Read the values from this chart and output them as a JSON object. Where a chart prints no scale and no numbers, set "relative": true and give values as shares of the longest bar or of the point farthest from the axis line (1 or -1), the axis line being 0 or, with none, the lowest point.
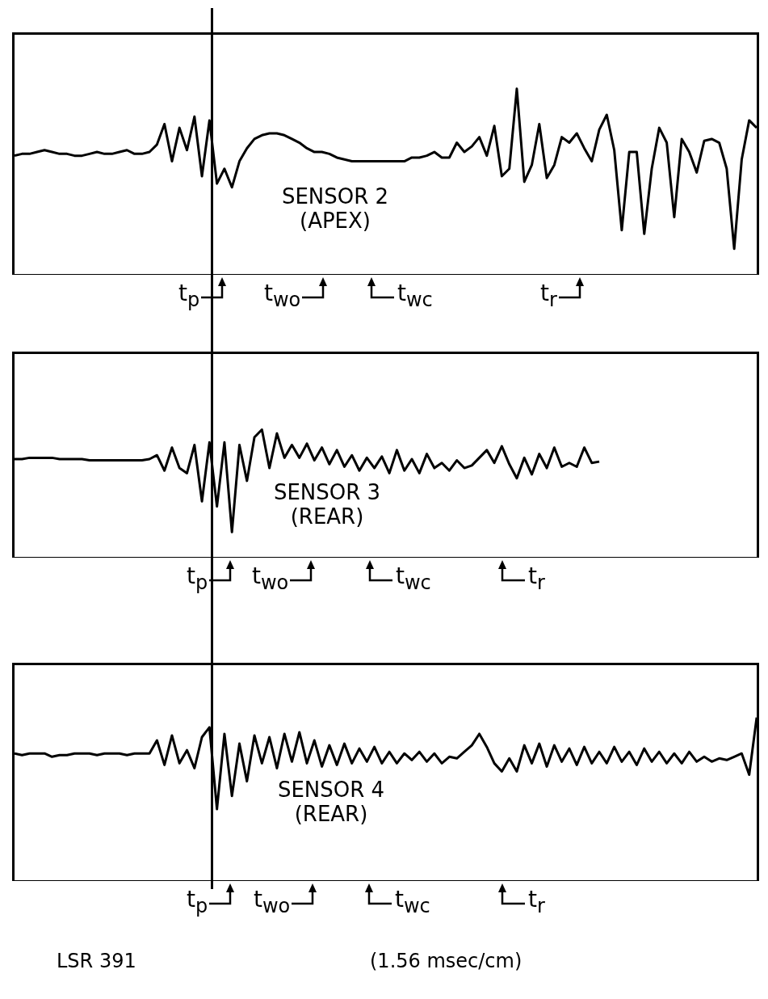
{
  "chart_data": [
    {
      "type": "line",
      "relative": true,
      "marker": "none",
      "color": "#000000",
      "categories": [
        null,
        null,
        null,
        null,
        null,
        null,
        null,
        null,
        null,
        null,
        null,
        null,
        null,
        null,
        null,
        null,
        null,
        null,
        null,
        null,
        null,
        null,
        null,
        null,
        null,
        null,
        null,
        null,
        null,
        null,
        null,
        null,
        null,
        null,
        null,
        null,
        null,
        null,
        null,
        null,
        null,
        null,
        null,
        null,
        null,
        null,
        null,
        null,
        null,
        null,
        null,
        null,
        null,
        null,
        null,
        null,
        null,
        null,
        null,
        null,
        null,
        null,
        null,
        null,
        null,
        null,
        null,
        null,
        null,
        null,
        null,
        null,
        null,
        null,
        null,
        null,
        null,
        null,
        null,
        null,
        null,
        null,
        null,
        null,
        null,
        null,
        null,
        null,
        null,
        null,
        null,
        null,
        null,
        null,
        null,
        null,
        null,
        null,
        null,
        null
      ],
      "values": [
        0.64,
        0.65,
        0.65,
        0.66,
        0.67,
        0.66,
        0.65,
        0.65,
        0.64,
        0.64,
        0.65,
        0.66,
        0.65,
        0.65,
        0.66,
        0.67,
        0.65,
        0.65,
        0.66,
        0.7,
        0.81,
        0.61,
        0.79,
        0.67,
        0.85,
        0.53,
        0.83,
        0.49,
        0.57,
        0.47,
        0.61,
        0.68,
        0.73,
        0.75,
        0.76,
        0.76,
        0.75,
        0.73,
        0.71,
        0.68,
        0.66,
        0.66,
        0.65,
        0.63,
        0.62,
        0.61,
        0.61,
        0.61,
        0.61,
        0.61,
        0.61,
        0.61,
        0.61,
        0.63,
        0.63,
        0.64,
        0.66,
        0.63,
        0.63,
        0.71,
        0.66,
        0.69,
        0.74,
        0.64,
        0.8,
        0.53,
        0.57,
        1,
        0.5,
        0.59,
        0.81,
        0.52,
        0.59,
        0.74,
        0.71,
        0.76,
        0.68,
        0.61,
        0.78,
        0.86,
        0.67,
        0.24,
        0.66,
        0.66,
        0.22,
        0.57,
        0.79,
        0.71,
        0.31,
        0.73,
        0.66,
        0.55,
        0.72,
        0.73,
        0.71,
        0.57,
        0.14,
        0.62,
        0.83,
        0.79
      ],
      "annotations": [
        "SENSOR 2 (APEX)",
        "t$_{p}$",
        "t$_{wo}$",
        "t$_{wc}$",
        "t$_{r}$"
      ]
    },
    {
      "type": "line",
      "relative": true,
      "marker": "none",
      "color": "#000000",
      "categories": [
        null,
        null,
        null,
        null,
        null,
        null,
        null,
        null,
        null,
        null,
        null,
        null,
        null,
        null,
        null,
        null,
        null,
        null,
        null,
        null,
        null,
        null,
        null,
        null,
        null,
        null,
        null,
        null,
        null,
        null,
        null,
        null,
        null,
        null,
        null,
        null,
        null,
        null,
        null,
        null,
        null,
        null,
        null,
        null,
        null,
        null,
        null,
        null,
        null,
        null,
        null,
        null,
        null,
        null,
        null,
        null,
        null,
        null,
        null,
        null,
        null,
        null,
        null,
        null,
        null,
        null,
        null,
        null,
        null,
        null,
        null,
        null,
        null,
        null,
        null,
        null,
        null,
        null,
        null,
        null,
        null,
        null,
        null,
        null,
        null,
        null,
        null,
        null,
        null,
        null,
        null,
        null,
        null,
        null,
        null,
        null,
        null,
        null,
        null,
        null
      ],
      "values": [
        0.77,
        0.77,
        0.78,
        0.78,
        0.78,
        0.78,
        0.77,
        0.77,
        0.77,
        0.77,
        0.76,
        0.76,
        0.76,
        0.76,
        0.76,
        0.76,
        0.76,
        0.76,
        0.77,
        0.8,
        0.68,
        0.86,
        0.7,
        0.66,
        0.88,
        0.44,
        0.9,
        0.4,
        0.9,
        0.2,
        0.88,
        0.6,
        0.94,
        1,
        0.7,
        0.97,
        0.78,
        0.88,
        0.78,
        0.89,
        0.76,
        0.86,
        0.73,
        0.84,
        0.71,
        0.8,
        0.68,
        0.78,
        0.7,
        0.79,
        0.66,
        0.84,
        0.68,
        0.77,
        0.66,
        0.81,
        0.7,
        0.74,
        0.68,
        0.76,
        0.7,
        0.72,
        0.78,
        0.84,
        0.74,
        0.87,
        0.73,
        0.62,
        0.78,
        0.65,
        0.81,
        0.7,
        0.86,
        0.71,
        0.74,
        0.71,
        0.86,
        0.74,
        0.75,
        null,
        null,
        null,
        null,
        null,
        null,
        null,
        null,
        null,
        null,
        null,
        null,
        null,
        null,
        null,
        null,
        null,
        null,
        null,
        null,
        null
      ],
      "annotations": [
        "SENSOR 3 (REAR)",
        "t$_{p}$",
        "t$_{wo}$",
        "t$_{wc}$",
        "t$_{r}$"
      ]
    },
    {
      "type": "line",
      "relative": true,
      "marker": "none",
      "color": "#000000",
      "categories": [
        null,
        null,
        null,
        null,
        null,
        null,
        null,
        null,
        null,
        null,
        null,
        null,
        null,
        null,
        null,
        null,
        null,
        null,
        null,
        null,
        null,
        null,
        null,
        null,
        null,
        null,
        null,
        null,
        null,
        null,
        null,
        null,
        null,
        null,
        null,
        null,
        null,
        null,
        null,
        null,
        null,
        null,
        null,
        null,
        null,
        null,
        null,
        null,
        null,
        null,
        null,
        null,
        null,
        null,
        null,
        null,
        null,
        null,
        null,
        null,
        null,
        null,
        null,
        null,
        null,
        null,
        null,
        null,
        null,
        null,
        null,
        null,
        null,
        null,
        null,
        null,
        null,
        null,
        null,
        null,
        null,
        null,
        null,
        null,
        null,
        null,
        null,
        null,
        null,
        null,
        null,
        null,
        null,
        null,
        null,
        null,
        null,
        null,
        null,
        null
      ],
      "values": [
        0.78,
        0.77,
        0.78,
        0.78,
        0.78,
        0.76,
        0.77,
        0.77,
        0.78,
        0.78,
        0.78,
        0.77,
        0.78,
        0.78,
        0.78,
        0.77,
        0.78,
        0.78,
        0.78,
        0.86,
        0.71,
        0.89,
        0.72,
        0.8,
        0.69,
        0.88,
        0.94,
        0.44,
        0.9,
        0.52,
        0.84,
        0.61,
        0.89,
        0.72,
        0.88,
        0.69,
        0.9,
        0.73,
        0.91,
        0.72,
        0.86,
        0.7,
        0.83,
        0.71,
        0.84,
        0.72,
        0.81,
        0.73,
        0.82,
        0.72,
        0.79,
        0.72,
        0.78,
        0.74,
        0.79,
        0.73,
        0.78,
        0.72,
        0.76,
        0.75,
        0.79,
        0.83,
        0.9,
        0.82,
        0.72,
        0.67,
        0.75,
        0.67,
        0.83,
        0.72,
        0.84,
        0.7,
        0.83,
        0.73,
        0.81,
        0.71,
        0.82,
        0.72,
        0.79,
        0.72,
        0.82,
        0.73,
        0.79,
        0.71,
        0.81,
        0.73,
        0.79,
        0.72,
        0.78,
        0.72,
        0.79,
        0.73,
        0.76,
        0.73,
        0.75,
        0.74,
        0.76,
        0.78,
        0.65,
        1
      ],
      "annotations": [
        "SENSOR 4 (REAR)",
        "t$_{p}$",
        "t$_{wo}$",
        "t$_{wc}$",
        "t$_{r}$",
        "LSR 391",
        "(1.56 msec/cm)"
      ]
    }
  ]
}
